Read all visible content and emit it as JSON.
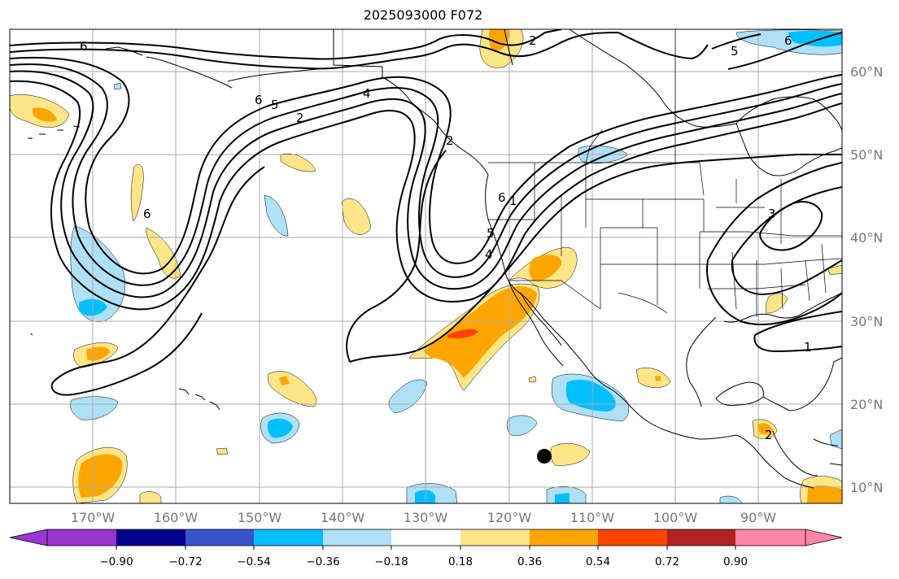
{
  "title": "2025093000 F072",
  "map": {
    "lon_range": [
      -180,
      -80
    ],
    "lat_range": [
      8,
      65
    ],
    "lat_ticks": [
      "60°N",
      "50°N",
      "40°N",
      "30°N",
      "20°N",
      "10°N"
    ],
    "lon_ticks": [
      "170°W",
      "160°W",
      "150°W",
      "140°W",
      "130°W",
      "120°W",
      "110°W",
      "100°W",
      "90°W"
    ],
    "gridlines": true
  },
  "colorbar": {
    "labels": [
      "−0.90",
      "−0.72",
      "−0.54",
      "−0.36",
      "−0.18",
      "0.18",
      "0.36",
      "0.54",
      "0.72",
      "0.90"
    ],
    "colors": [
      "#9a35d0",
      "#00008b",
      "#3655cd",
      "#00bfff",
      "#aee0f8",
      "#ffffff",
      "#fde68a",
      "#ffa500",
      "#ff4500",
      "#b22222",
      "#ff85aa"
    ]
  },
  "contour_labels": [
    "6",
    "6",
    "2",
    "6",
    "5",
    "2",
    "4",
    "2",
    "6",
    "1",
    "5",
    "4",
    "3",
    "1",
    "2",
    "6",
    "5"
  ]
}
